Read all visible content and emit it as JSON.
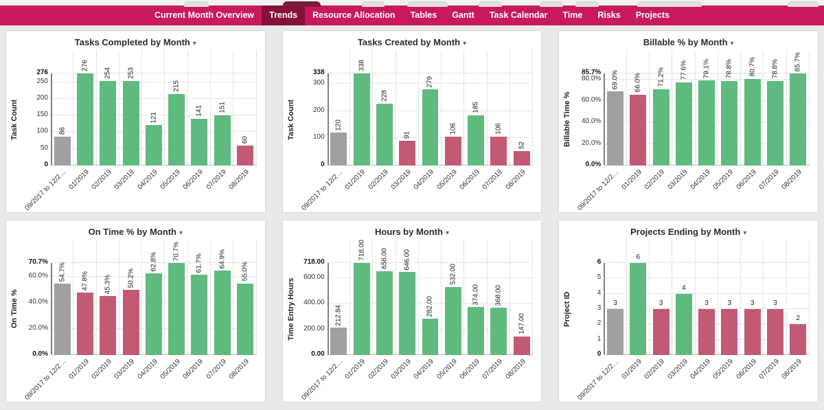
{
  "ui": {
    "caret_glyph": "▾",
    "colors": {
      "nav_bar": "#C81A5B",
      "nav_selected": "#851139",
      "bar_green": "#5FBA7F",
      "bar_red": "#C35A73",
      "bar_gray": "#A0A0A0",
      "grid": "#E4E4E4",
      "axis": "#7F7F7F"
    }
  },
  "nav": {
    "tabs": [
      {
        "label": "Current Month Overview",
        "selected": false
      },
      {
        "label": "Trends",
        "selected": true
      },
      {
        "label": "Resource Allocation",
        "selected": false
      },
      {
        "label": "Tables",
        "selected": false
      },
      {
        "label": "Gantt",
        "selected": false
      },
      {
        "label": "Task Calendar",
        "selected": false
      },
      {
        "label": "Time",
        "selected": false
      },
      {
        "label": "Risks",
        "selected": false
      },
      {
        "label": "Projects",
        "selected": false
      }
    ]
  },
  "chart_data": [
    {
      "type": "bar",
      "title": "Tasks Completed by Month",
      "ylabel": "Task Count",
      "categories": [
        "09/2017 to 12/2…",
        "01/2019",
        "02/2019",
        "03/2019",
        "04/2019",
        "05/2019",
        "06/2019",
        "07/2019",
        "08/2019"
      ],
      "values": [
        86,
        276,
        254,
        253,
        121,
        215,
        141,
        151,
        60
      ],
      "bar_labels": [
        "86",
        "276",
        "254",
        "253",
        "121",
        "215",
        "141",
        "151",
        "60"
      ],
      "bar_colors": [
        "gray",
        "green",
        "green",
        "green",
        "green",
        "green",
        "green",
        "green",
        "red"
      ],
      "ylim": [
        0,
        276
      ],
      "yticks": [
        {
          "label": "0",
          "value": 0,
          "bold": true
        },
        {
          "label": "50",
          "value": 50
        },
        {
          "label": "100",
          "value": 100
        },
        {
          "label": "150",
          "value": 150
        },
        {
          "label": "200",
          "value": 200
        },
        {
          "label": "250",
          "value": 250
        },
        {
          "label": "276",
          "value": 276,
          "bold": true
        }
      ],
      "rotated_value_labels": true
    },
    {
      "type": "bar",
      "title": "Tasks Created by Month",
      "ylabel": "Task Count",
      "categories": [
        "09/2017 to 12/2…",
        "01/2019",
        "02/2019",
        "03/2019",
        "04/2019",
        "05/2019",
        "06/2019",
        "07/2019",
        "08/2019"
      ],
      "values": [
        120,
        338,
        228,
        91,
        279,
        106,
        185,
        106,
        52
      ],
      "bar_labels": [
        "120",
        "338",
        "228",
        "91",
        "279",
        "106",
        "185",
        "106",
        "52"
      ],
      "bar_colors": [
        "gray",
        "green",
        "green",
        "red",
        "green",
        "red",
        "green",
        "red",
        "red"
      ],
      "ylim": [
        0,
        338
      ],
      "yticks": [
        {
          "label": "0",
          "value": 0,
          "bold": true
        },
        {
          "label": "100",
          "value": 100
        },
        {
          "label": "200",
          "value": 200
        },
        {
          "label": "300",
          "value": 300
        },
        {
          "label": "338",
          "value": 338,
          "bold": true
        }
      ],
      "rotated_value_labels": true
    },
    {
      "type": "bar",
      "title": "Billable % by Month",
      "ylabel": "Billable Time %",
      "categories": [
        "09/2017 to 12/2…",
        "01/2019",
        "02/2019",
        "03/2019",
        "04/2019",
        "05/2019",
        "06/2019",
        "07/2019",
        "08/2019"
      ],
      "values": [
        69.0,
        66.0,
        71.2,
        77.6,
        79.1,
        78.8,
        80.7,
        78.8,
        85.7
      ],
      "bar_labels": [
        "69.0%",
        "66.0%",
        "71.2%",
        "77.6%",
        "79.1%",
        "78.8%",
        "80.7%",
        "78.8%",
        "85.7%"
      ],
      "bar_colors": [
        "gray",
        "red",
        "green",
        "green",
        "green",
        "green",
        "green",
        "green",
        "green"
      ],
      "ylim": [
        0,
        85.7
      ],
      "yticks": [
        {
          "label": "0.0%",
          "value": 0,
          "bold": true
        },
        {
          "label": "20.0%",
          "value": 20
        },
        {
          "label": "40.0%",
          "value": 40
        },
        {
          "label": "60.0%",
          "value": 60
        },
        {
          "label": "80.0%",
          "value": 80
        },
        {
          "label": "85.7%",
          "value": 85.7,
          "bold": true
        }
      ],
      "rotated_value_labels": true
    },
    {
      "type": "bar",
      "title": "On Time % by Month",
      "ylabel": "On Time %",
      "categories": [
        "09/2017 to 12/2…",
        "01/2019",
        "02/2019",
        "03/2019",
        "04/2019",
        "05/2019",
        "06/2019",
        "07/2019",
        "08/2019"
      ],
      "values": [
        54.7,
        47.8,
        45.3,
        50.2,
        62.8,
        70.7,
        61.7,
        64.9,
        55.0
      ],
      "bar_labels": [
        "54.7%",
        "47.8%",
        "45.3%",
        "50.2%",
        "62.8%",
        "70.7%",
        "61.7%",
        "64.9%",
        "55.0%"
      ],
      "bar_colors": [
        "gray",
        "red",
        "red",
        "red",
        "green",
        "green",
        "green",
        "green",
        "green"
      ],
      "ylim": [
        0,
        70.7
      ],
      "yticks": [
        {
          "label": "0.0%",
          "value": 0,
          "bold": true
        },
        {
          "label": "20.0%",
          "value": 20
        },
        {
          "label": "40.0%",
          "value": 40
        },
        {
          "label": "60.0%",
          "value": 60
        },
        {
          "label": "70.7%",
          "value": 70.7,
          "bold": true
        }
      ],
      "rotated_value_labels": true
    },
    {
      "type": "bar",
      "title": "Hours by Month",
      "ylabel": "Time Entry Hours",
      "categories": [
        "09/2017 to 12/2…",
        "01/2019",
        "02/2019",
        "03/2019",
        "04/2019",
        "05/2019",
        "06/2019",
        "07/2019",
        "08/2019"
      ],
      "values": [
        212.84,
        718.0,
        656.0,
        646.0,
        282.0,
        532.0,
        374.0,
        368.0,
        147.0
      ],
      "bar_labels": [
        "212.84",
        "718.00",
        "656.00",
        "646.00",
        "282.00",
        "532.00",
        "374.00",
        "368.00",
        "147.00"
      ],
      "bar_colors": [
        "gray",
        "green",
        "green",
        "green",
        "green",
        "green",
        "green",
        "green",
        "red"
      ],
      "ylim": [
        0,
        718
      ],
      "yticks": [
        {
          "label": "0.00",
          "value": 0,
          "bold": true
        },
        {
          "label": "200.00",
          "value": 200
        },
        {
          "label": "400.00",
          "value": 400
        },
        {
          "label": "600.00",
          "value": 600
        },
        {
          "label": "718.00",
          "value": 718,
          "bold": true
        }
      ],
      "rotated_value_labels": true
    },
    {
      "type": "bar",
      "title": "Projects Ending by Month",
      "ylabel": "Project ID",
      "categories": [
        "09/2017 to 12/2…",
        "01/2019",
        "02/2019",
        "03/2019",
        "04/2019",
        "05/2019",
        "06/2019",
        "07/2019",
        "08/2019"
      ],
      "values": [
        3,
        6,
        3,
        4,
        3,
        3,
        3,
        3,
        2
      ],
      "bar_labels": [
        "3",
        "6",
        "3",
        "4",
        "3",
        "3",
        "3",
        "3",
        "2"
      ],
      "bar_colors": [
        "gray",
        "green",
        "red",
        "green",
        "red",
        "red",
        "red",
        "red",
        "red"
      ],
      "ylim": [
        0,
        6
      ],
      "yticks": [
        {
          "label": "0",
          "value": 0,
          "bold": true
        },
        {
          "label": "1",
          "value": 1
        },
        {
          "label": "2",
          "value": 2
        },
        {
          "label": "3",
          "value": 3
        },
        {
          "label": "4",
          "value": 4
        },
        {
          "label": "5",
          "value": 5
        },
        {
          "label": "6",
          "value": 6,
          "bold": true
        }
      ],
      "rotated_value_labels": false
    }
  ]
}
